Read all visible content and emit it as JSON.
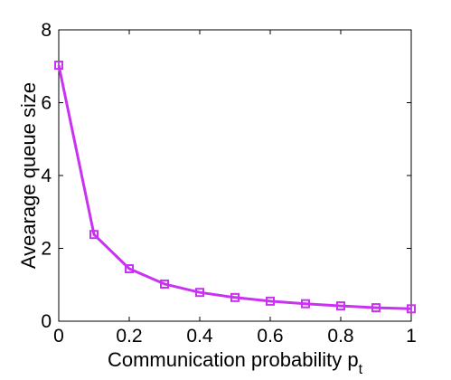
{
  "chart_data": {
    "type": "line",
    "title": "",
    "xlabel": "Communication probability p",
    "xlabel_subscript": "t",
    "ylabel": "Avearage queue size",
    "xlim": [
      0,
      1
    ],
    "ylim": [
      0,
      8
    ],
    "xticks": [
      0,
      0.2,
      0.4,
      0.6,
      0.8,
      1
    ],
    "xtick_labels": [
      "0",
      "0.2",
      "0.4",
      "0.6",
      "0.8",
      "1"
    ],
    "yticks": [
      0,
      2,
      4,
      6,
      8
    ],
    "ytick_labels": [
      "0",
      "2",
      "4",
      "6",
      "8"
    ],
    "grid": false,
    "series": [
      {
        "color": "#c832f0",
        "marker": "square",
        "x": [
          0,
          0.1,
          0.2,
          0.3,
          0.4,
          0.5,
          0.6,
          0.7,
          0.8,
          0.9,
          1.0
        ],
        "y": [
          7.03,
          2.38,
          1.44,
          1.02,
          0.79,
          0.65,
          0.55,
          0.48,
          0.42,
          0.37,
          0.34
        ]
      }
    ]
  }
}
